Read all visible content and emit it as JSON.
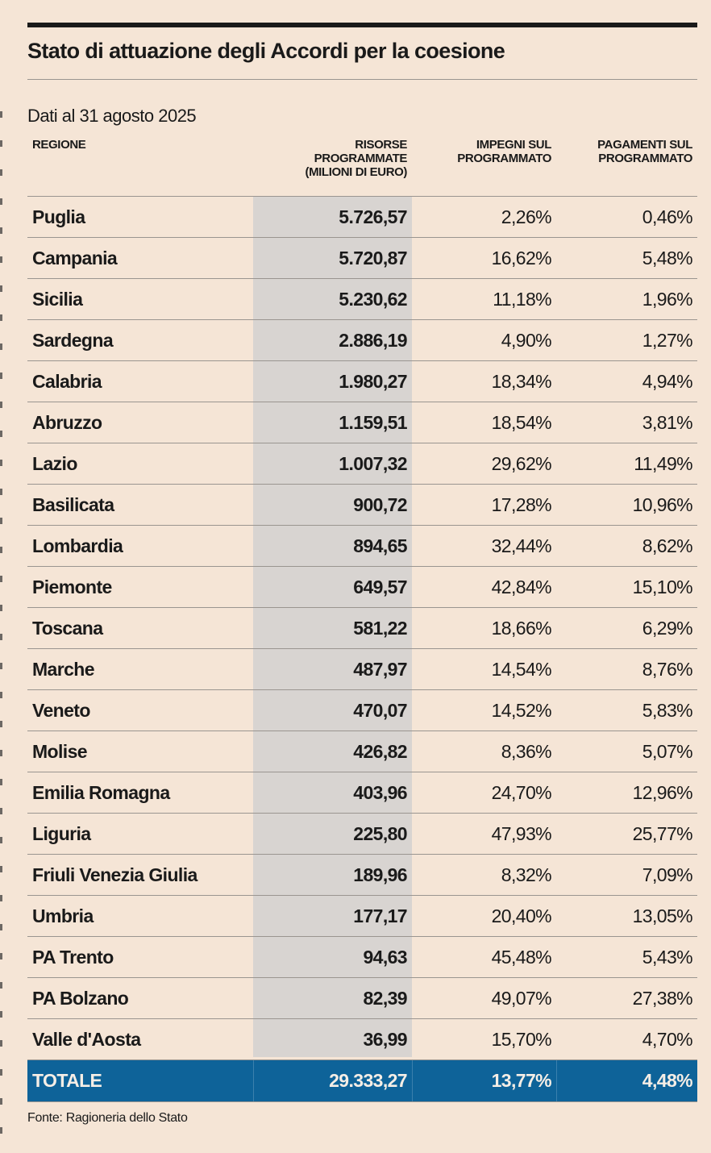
{
  "title": "Stato di attuazione degli Accordi per la coesione",
  "subtitle": "Dati al 31 agosto 2025",
  "source": "Fonte: Ragioneria dello Stato",
  "colors": {
    "background": "#f5e5d6",
    "highlight_column": "#d8d4d1",
    "total_row": "#0e6399"
  },
  "headers": [
    "REGIONE",
    "RISORSE PROGRAMMATE (MILIONI DI EURO)",
    "IMPEGNI SUL PROGRAMMATO",
    "PAGAMENTI SUL PROGRAMMATO"
  ],
  "rows": [
    [
      "Puglia",
      "5.726,57",
      "2,26%",
      "0,46%"
    ],
    [
      "Campania",
      "5.720,87",
      "16,62%",
      "5,48%"
    ],
    [
      "Sicilia",
      "5.230,62",
      "11,18%",
      "1,96%"
    ],
    [
      "Sardegna",
      "2.886,19",
      "4,90%",
      "1,27%"
    ],
    [
      "Calabria",
      "1.980,27",
      "18,34%",
      "4,94%"
    ],
    [
      "Abruzzo",
      "1.159,51",
      "18,54%",
      "3,81%"
    ],
    [
      "Lazio",
      "1.007,32",
      "29,62%",
      "11,49%"
    ],
    [
      "Basilicata",
      "900,72",
      "17,28%",
      "10,96%"
    ],
    [
      "Lombardia",
      "894,65",
      "32,44%",
      "8,62%"
    ],
    [
      "Piemonte",
      "649,57",
      "42,84%",
      "15,10%"
    ],
    [
      "Toscana",
      "581,22",
      "18,66%",
      "6,29%"
    ],
    [
      "Marche",
      "487,97",
      "14,54%",
      "8,76%"
    ],
    [
      "Veneto",
      "470,07",
      "14,52%",
      "5,83%"
    ],
    [
      "Molise",
      "426,82",
      "8,36%",
      "5,07%"
    ],
    [
      "Emilia Romagna",
      "403,96",
      "24,70%",
      "12,96%"
    ],
    [
      "Liguria",
      "225,80",
      "47,93%",
      "25,77%"
    ],
    [
      "Friuli Venezia Giulia",
      "189,96",
      "8,32%",
      "7,09%"
    ],
    [
      "Umbria",
      "177,17",
      "20,40%",
      "13,05%"
    ],
    [
      "PA Trento",
      "94,63",
      "45,48%",
      "5,43%"
    ],
    [
      "PA Bolzano",
      "82,39",
      "49,07%",
      "27,38%"
    ],
    [
      "Valle d'Aosta",
      "36,99",
      "15,70%",
      "4,70%"
    ]
  ],
  "total": [
    "TOTALE",
    "29.333,27",
    "13,77%",
    "4,48%"
  ],
  "chart_data": {
    "type": "table",
    "title": "Stato di attuazione degli Accordi per la coesione",
    "subtitle": "Dati al 31 agosto 2025",
    "columns": [
      "REGIONE",
      "RISORSE PROGRAMMATE (MILIONI DI EURO)",
      "IMPEGNI SUL PROGRAMMATO",
      "PAGAMENTI SUL PROGRAMMATO"
    ],
    "note": "rows and total as listed in rows / total"
  }
}
